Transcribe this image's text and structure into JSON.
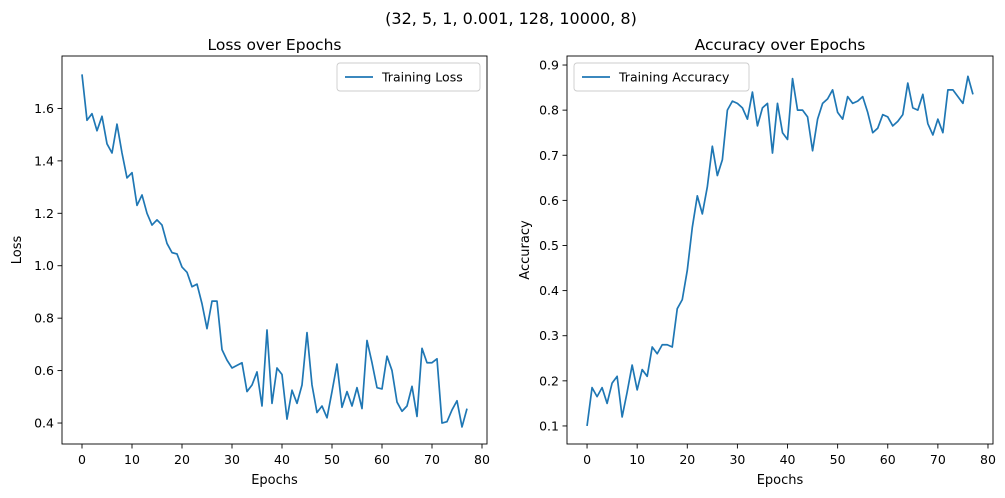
{
  "figure": {
    "suptitle": "(32, 5, 1, 0.001, 128, 10000, 8)"
  },
  "chart_data": [
    {
      "type": "line",
      "title": "Loss over Epochs",
      "xlabel": "Epochs",
      "ylabel": "Loss",
      "xlim": [
        -4,
        81
      ],
      "ylim": [
        0.32,
        1.8
      ],
      "xticks": [
        0,
        10,
        20,
        30,
        40,
        50,
        60,
        70,
        80
      ],
      "yticks": [
        0.4,
        0.6,
        0.8,
        1.0,
        1.2,
        1.4,
        1.6
      ],
      "ytick_labels": [
        "0.4",
        "0.6",
        "0.8",
        "1.0",
        "1.2",
        "1.4",
        "1.6"
      ],
      "grid": false,
      "legend": "top-right",
      "series": [
        {
          "name": "Training Loss",
          "color": "#1f77b4",
          "values": [
            1.73,
            1.555,
            1.58,
            1.515,
            1.57,
            1.465,
            1.43,
            1.54,
            1.43,
            1.335,
            1.355,
            1.23,
            1.27,
            1.2,
            1.155,
            1.175,
            1.155,
            1.085,
            1.05,
            1.045,
            0.995,
            0.975,
            0.92,
            0.93,
            0.855,
            0.76,
            0.865,
            0.865,
            0.68,
            0.64,
            0.61,
            0.62,
            0.63,
            0.52,
            0.545,
            0.595,
            0.465,
            0.755,
            0.475,
            0.61,
            0.585,
            0.415,
            0.525,
            0.475,
            0.545,
            0.745,
            0.545,
            0.44,
            0.465,
            0.42,
            0.52,
            0.625,
            0.46,
            0.52,
            0.465,
            0.535,
            0.455,
            0.715,
            0.63,
            0.535,
            0.53,
            0.655,
            0.6,
            0.48,
            0.445,
            0.465,
            0.54,
            0.425,
            0.685,
            0.63,
            0.63,
            0.645,
            0.4,
            0.405,
            0.45,
            0.485,
            0.385,
            0.455
          ]
        }
      ]
    },
    {
      "type": "line",
      "title": "Accuracy over Epochs",
      "xlabel": "Epochs",
      "ylabel": "Accuracy",
      "xlim": [
        -4,
        81
      ],
      "ylim": [
        0.06,
        0.92
      ],
      "xticks": [
        0,
        10,
        20,
        30,
        40,
        50,
        60,
        70,
        80
      ],
      "yticks": [
        0.1,
        0.2,
        0.3,
        0.4,
        0.5,
        0.6,
        0.7,
        0.8,
        0.9
      ],
      "ytick_labels": [
        "0.1",
        "0.2",
        "0.3",
        "0.4",
        "0.5",
        "0.6",
        "0.7",
        "0.8",
        "0.9"
      ],
      "grid": false,
      "legend": "top-left",
      "series": [
        {
          "name": "Training Accuracy",
          "color": "#1f77b4",
          "values": [
            0.1,
            0.185,
            0.165,
            0.185,
            0.15,
            0.195,
            0.21,
            0.12,
            0.175,
            0.235,
            0.18,
            0.225,
            0.21,
            0.275,
            0.26,
            0.28,
            0.28,
            0.275,
            0.36,
            0.38,
            0.445,
            0.54,
            0.61,
            0.57,
            0.63,
            0.72,
            0.655,
            0.69,
            0.8,
            0.82,
            0.815,
            0.805,
            0.78,
            0.84,
            0.765,
            0.805,
            0.815,
            0.705,
            0.815,
            0.75,
            0.735,
            0.87,
            0.8,
            0.8,
            0.785,
            0.71,
            0.78,
            0.815,
            0.825,
            0.845,
            0.795,
            0.78,
            0.83,
            0.815,
            0.82,
            0.83,
            0.795,
            0.75,
            0.76,
            0.79,
            0.785,
            0.765,
            0.775,
            0.79,
            0.86,
            0.805,
            0.8,
            0.835,
            0.77,
            0.745,
            0.78,
            0.75,
            0.845,
            0.845,
            0.83,
            0.815,
            0.875,
            0.835
          ]
        }
      ]
    }
  ]
}
